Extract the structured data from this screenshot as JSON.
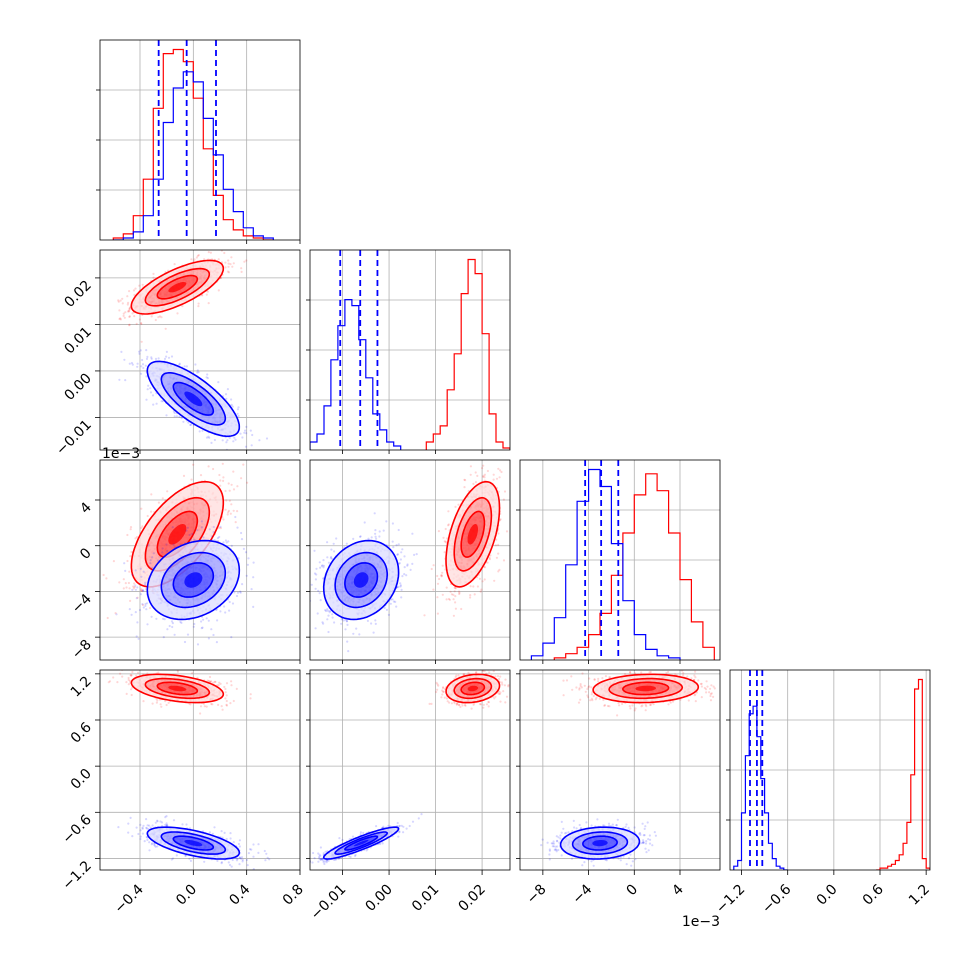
{
  "chart_data": {
    "type": "corner",
    "grid": true,
    "colors": {
      "series_a": "#ff0000",
      "series_b": "#0000ff",
      "quantile_lines": "#0000ff"
    },
    "parameters": [
      {
        "range": [
          -0.7,
          0.8
        ],
        "ticks": [
          -0.4,
          0.0,
          0.4,
          0.8
        ],
        "tick_labels": [
          "−0.4",
          "0.0",
          "0.4",
          "0.8"
        ],
        "offset_text": ""
      },
      {
        "range": [
          -0.017,
          0.026
        ],
        "ticks": [
          -0.01,
          0.0,
          0.01,
          0.02
        ],
        "tick_labels": [
          "−0.01",
          "0.00",
          "0.01",
          "0.02"
        ],
        "offset_text": ""
      },
      {
        "range": [
          -10.0,
          7.5
        ],
        "ticks": [
          -8,
          -4,
          0,
          4
        ],
        "tick_labels": [
          "−8",
          "−4",
          "0",
          "4"
        ],
        "offset_text": "1e−3"
      },
      {
        "range": [
          -1.35,
          1.25
        ],
        "ticks": [
          -1.2,
          -0.6,
          0.0,
          0.6,
          1.2
        ],
        "tick_labels": [
          "−1.2",
          "−0.6",
          "0.0",
          "0.6",
          "1.2"
        ],
        "offset_text": ""
      }
    ],
    "series": [
      {
        "color": "#ff0000",
        "mean": [
          -0.12,
          0.018,
          1.0,
          1.01
        ],
        "std": [
          0.15,
          0.0025,
          2.0,
          0.08
        ],
        "corr": [
          [
            1,
            0.7,
            0.6,
            -0.4
          ],
          [
            0.7,
            1,
            0.5,
            0.2
          ],
          [
            0.6,
            0.5,
            1,
            0.1
          ],
          [
            -0.4,
            0.2,
            0.1,
            1
          ]
        ],
        "hist": [
          {
            "edges": [
              -0.6,
              -0.525,
              -0.45,
              -0.375,
              -0.3,
              -0.225,
              -0.15,
              -0.075,
              0.0,
              0.075,
              0.15,
              0.225,
              0.3,
              0.375,
              0.45,
              0.525,
              0.6
            ],
            "counts": [
              1,
              3,
              12,
              30,
              65,
              92,
              94,
              88,
              70,
              45,
              22,
              10,
              5,
              2,
              1,
              0
            ]
          },
          {
            "edges": [
              0.008,
              0.0095,
              0.011,
              0.0125,
              0.014,
              0.0155,
              0.017,
              0.0185,
              0.02,
              0.0215,
              0.023,
              0.0245,
              0.026
            ],
            "counts": [
              4,
              8,
              12,
              30,
              48,
              78,
              95,
              88,
              58,
              18,
              4,
              1
            ]
          },
          {
            "edges": [
              -7,
              -6,
              -5,
              -4,
              -3,
              -2,
              -1,
              0,
              1,
              2,
              3,
              4,
              5,
              6,
              7
            ],
            "counts": [
              1,
              3,
              6,
              12,
              22,
              40,
              60,
              78,
              88,
              80,
              60,
              38,
              18,
              6
            ]
          },
          {
            "edges": [
              0.55,
              0.6,
              0.65,
              0.7,
              0.75,
              0.8,
              0.85,
              0.9,
              0.95,
              1.0,
              1.05,
              1.1,
              1.15,
              1.2,
              1.25
            ],
            "counts": [
              0,
              1,
              1,
              2,
              3,
              5,
              8,
              14,
              25,
              50,
              95,
              100,
              6,
              1
            ]
          }
        ]
      },
      {
        "color": "#0000ff",
        "mean": [
          0.0,
          -0.006,
          -3.0,
          -1.0
        ],
        "std": [
          0.15,
          0.0035,
          1.5,
          0.09
        ],
        "corr": [
          [
            1,
            -0.75,
            0.25,
            -0.6
          ],
          [
            -0.75,
            1,
            0.2,
            0.9
          ],
          [
            0.25,
            0.2,
            1,
            0.1
          ],
          [
            -0.6,
            0.9,
            0.1,
            1
          ]
        ],
        "hist": [
          {
            "edges": [
              -0.6,
              -0.525,
              -0.45,
              -0.375,
              -0.3,
              -0.225,
              -0.15,
              -0.075,
              0.0,
              0.075,
              0.15,
              0.225,
              0.3,
              0.375,
              0.45,
              0.525,
              0.6
            ],
            "counts": [
              0,
              1,
              4,
              12,
              30,
              58,
              75,
              83,
              78,
              60,
              42,
              25,
              14,
              6,
              2,
              1
            ]
          },
          {
            "edges": [
              -0.017,
              -0.0155,
              -0.014,
              -0.0125,
              -0.011,
              -0.0095,
              -0.008,
              -0.0065,
              -0.005,
              -0.0035,
              -0.002,
              -0.0005,
              0.001,
              0.0025
            ],
            "counts": [
              4,
              8,
              22,
              45,
              62,
              75,
              72,
              55,
              36,
              18,
              10,
              4,
              2
            ]
          },
          {
            "edges": [
              -9,
              -8,
              -7,
              -6,
              -5,
              -4,
              -3,
              -2,
              -1,
              0,
              1,
              2,
              3,
              4
            ],
            "counts": [
              2,
              8,
              20,
              45,
              75,
              90,
              82,
              55,
              28,
              12,
              5,
              2,
              1
            ]
          },
          {
            "edges": [
              -1.3,
              -1.25,
              -1.2,
              -1.15,
              -1.1,
              -1.05,
              -1.0,
              -0.95,
              -0.9,
              -0.85,
              -0.8,
              -0.75,
              -0.7,
              -0.65,
              -0.6
            ],
            "counts": [
              2,
              5,
              30,
              60,
              82,
              86,
              70,
              48,
              30,
              14,
              6,
              2,
              1,
              0
            ]
          }
        ]
      }
    ],
    "quantile_lines": [
      [
        -0.26,
        -0.05,
        0.17
      ],
      [
        -0.0105,
        -0.0062,
        -0.0025
      ],
      [
        -4.3,
        -2.9,
        -1.4
      ],
      [
        -1.09,
        -1.0,
        -0.93
      ]
    ]
  }
}
